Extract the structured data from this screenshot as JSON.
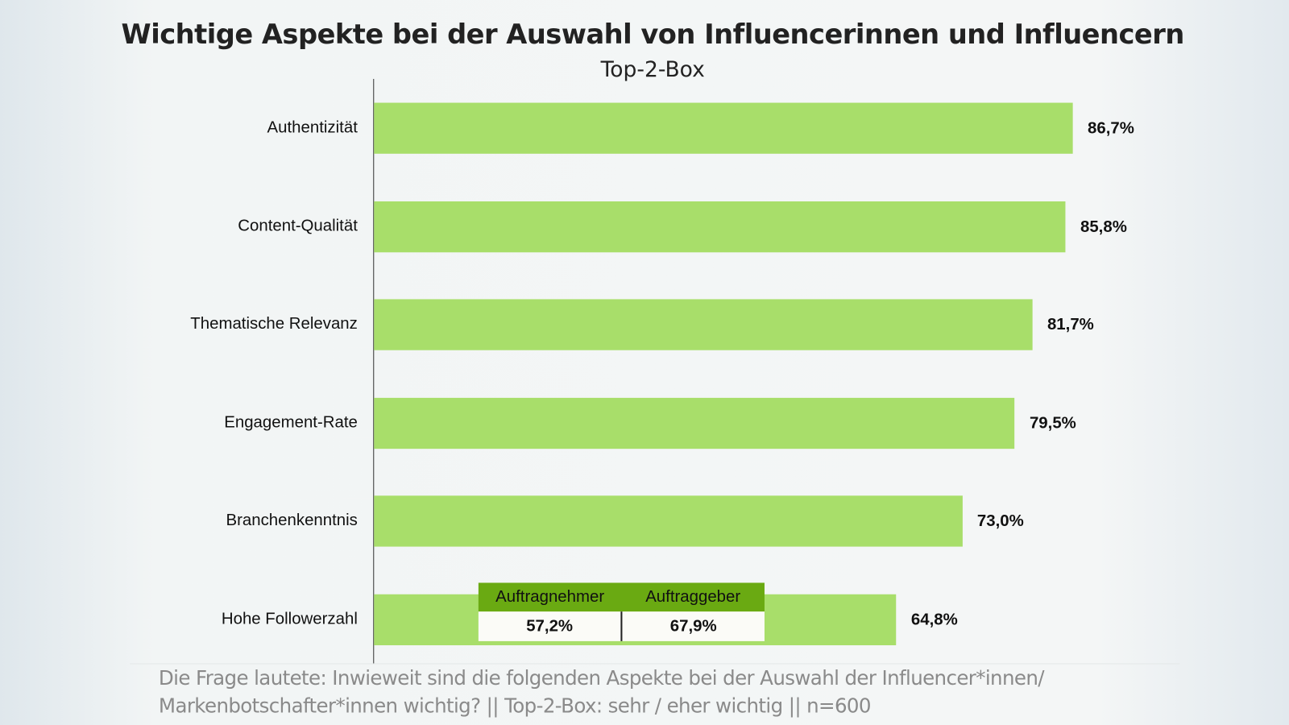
{
  "chart_data": {
    "type": "bar",
    "orientation": "horizontal",
    "title": "Wichtige Aspekte bei der Auswahl von Influencerinnen und Influencern",
    "subtitle": "Top-2-Box",
    "categories": [
      "Authentizität",
      "Content-Qualität",
      "Thematische Relevanz",
      "Engagement-Rate",
      "Branchenkenntnis",
      "Hohe Followerzahl"
    ],
    "values": [
      86.7,
      85.8,
      81.7,
      79.5,
      73.0,
      64.8
    ],
    "data_labels": [
      "86,7%",
      "85,8%",
      "81,7%",
      "79,5%",
      "73,0%",
      "64,8%"
    ],
    "xlim": [
      0,
      100
    ],
    "grid": false,
    "bar_color": "#a8de6a",
    "inset_table": {
      "headers": [
        "Auftragnehmer",
        "Auftraggeber"
      ],
      "values": [
        "57,2%",
        "67,9%"
      ],
      "header_color": "#6aaa12"
    },
    "footnote": [
      "Die Frage lautete: Inwieweit sind die folgenden Aspekte bei der Auswahl der Influencer*innen/",
      "Markenbotschafter*innen wichtig? || Top-2-Box: sehr / eher wichtig || n=600"
    ]
  }
}
